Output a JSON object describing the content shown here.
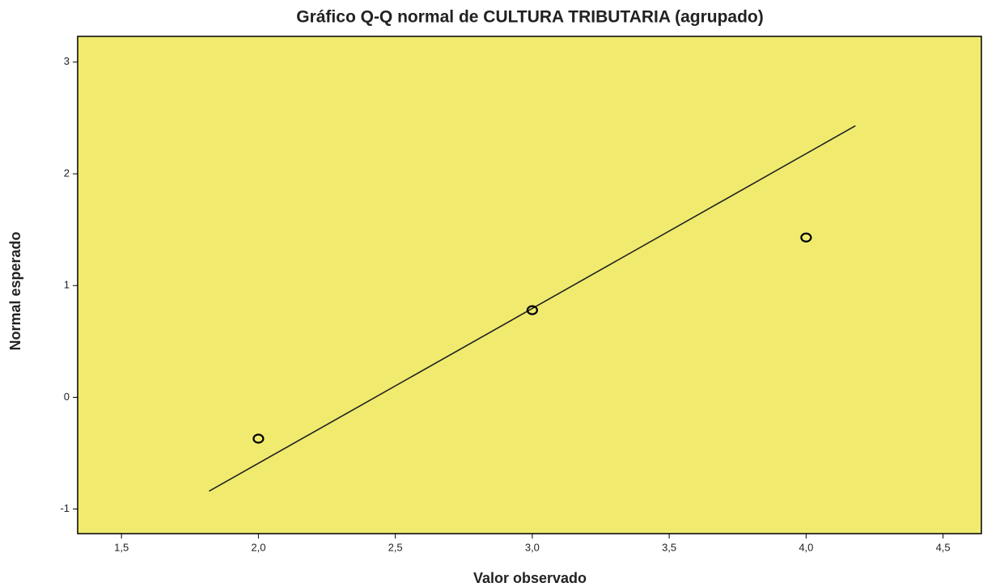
{
  "chart_data": {
    "type": "scatter",
    "title": "Gráfico Q-Q normal de CULTURA TRIBUTARIA (agrupado)",
    "x_label": "Valor observado",
    "y_label": "Normal esperado",
    "x": [
      2.0,
      3.0,
      4.0
    ],
    "values": [
      -0.37,
      0.78,
      1.43
    ],
    "color": "#000000",
    "background": "#f0eb6e",
    "reference_line": {
      "x": [
        1.82,
        4.18
      ],
      "y": [
        -0.84,
        2.43
      ]
    },
    "xlim": [
      1.34,
      4.64
    ],
    "xticks": [
      {
        "value": 1.5,
        "label": "1,5"
      },
      {
        "value": 2.0,
        "label": "2,0"
      },
      {
        "value": 2.5,
        "label": "2,5"
      },
      {
        "value": 3.0,
        "label": "3,0"
      },
      {
        "value": 3.5,
        "label": "3,5"
      },
      {
        "value": 4.0,
        "label": "4,0"
      },
      {
        "value": 4.5,
        "label": "4,5"
      }
    ],
    "ylim": [
      -1.22,
      3.23
    ],
    "yticks": [
      -1,
      0,
      1,
      2,
      3
    ]
  }
}
